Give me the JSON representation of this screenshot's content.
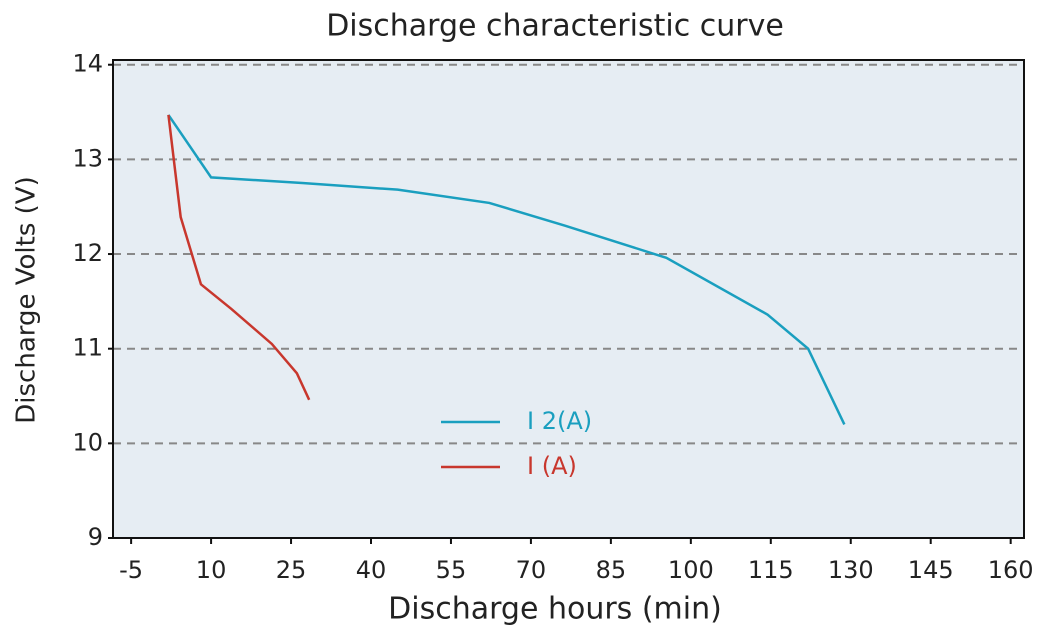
{
  "chart_data": {
    "type": "line",
    "title": "Discharge characteristic curve",
    "x_label": "Discharge hours (min)",
    "y_label": "Discharge Volts (V)",
    "xlim": [
      -8.4,
      162.5
    ],
    "ylim": [
      9,
      14.05
    ],
    "xticks": [
      -5,
      10,
      25,
      40,
      55,
      70,
      85,
      100,
      115,
      130,
      145,
      160
    ],
    "yticks": [
      9,
      10,
      11,
      12,
      13,
      14
    ],
    "grid": true,
    "legend": "center",
    "series": [
      {
        "name": "I 2(A)",
        "color": "#1a9fbf",
        "x": [
          2.0,
          10.0,
          27.1,
          45,
          62.2,
          76.4,
          95.4,
          114.4,
          122.0,
          128.8
        ],
        "values": [
          13.47,
          12.81,
          12.75,
          12.68,
          12.54,
          12.3,
          11.96,
          11.36,
          11.0,
          10.2
        ]
      },
      {
        "name": "I (A)",
        "color": "#c8372d",
        "x": [
          2.0,
          4.3,
          8.1,
          13.8,
          21.4,
          26.1,
          28.4
        ],
        "values": [
          13.47,
          12.39,
          11.68,
          11.42,
          11.05,
          10.74,
          10.46
        ]
      }
    ]
  }
}
